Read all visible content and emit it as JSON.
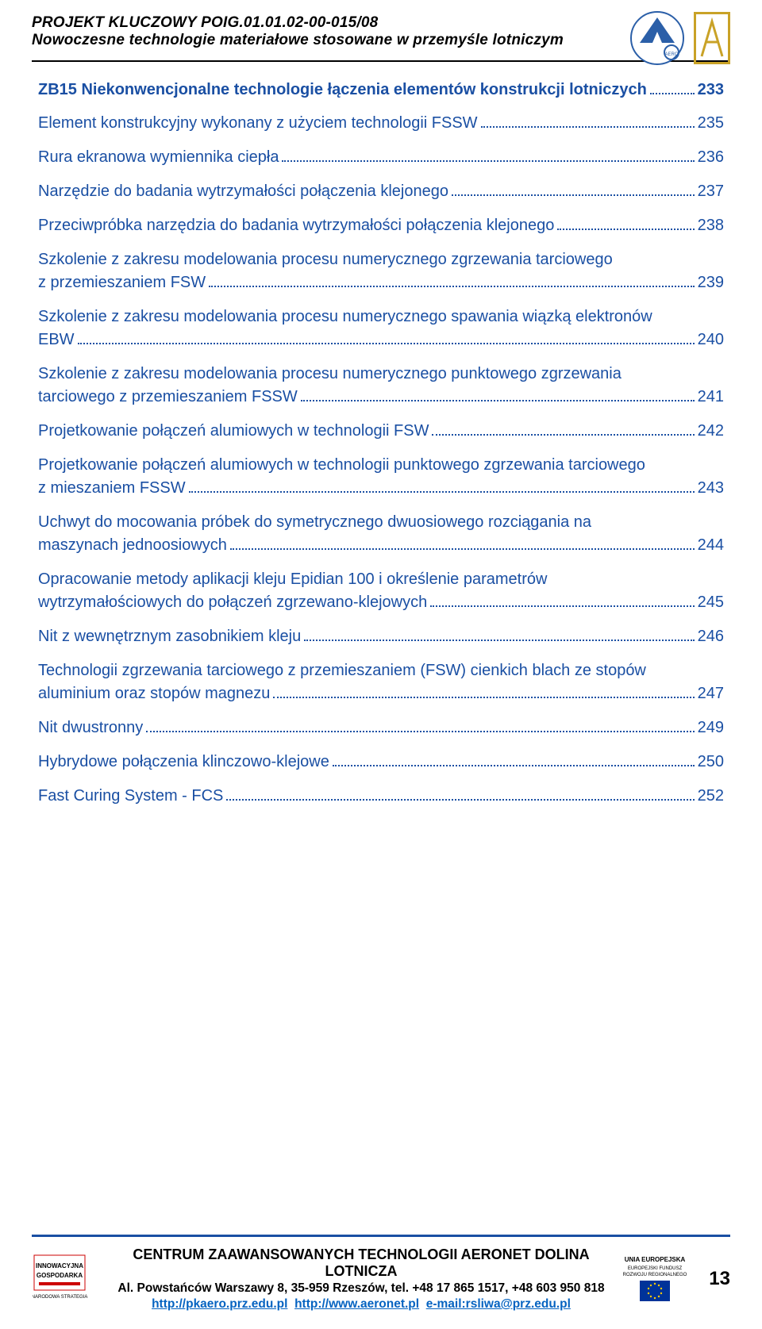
{
  "header": {
    "line1": "PROJEKT KLUCZOWY POIG.01.01.02-00-015/08",
    "line2": "Nowoczesne technologie materiałowe stosowane w przemyśle lotniczym"
  },
  "colors": {
    "link_blue": "#1a4fa3",
    "rule_black": "#000000",
    "footer_rule_blue": "#1a4fa3",
    "gold": "#c9a227",
    "hyperlink": "#0563c1"
  },
  "section": {
    "title": "ZB15 Niekonwencjonalne technologie łączenia elementów konstrukcji lotniczych",
    "page": "233"
  },
  "toc": [
    {
      "text_a": "Element konstrukcyjny wykonany z użyciem  technologii FSSW",
      "text_b": "",
      "page": "235"
    },
    {
      "text_a": "Rura ekranowa wymiennika ciepła",
      "text_b": "",
      "page": "236"
    },
    {
      "text_a": "Narzędzie do badania wytrzymałości  połączenia klejonego",
      "text_b": "",
      "page": "237"
    },
    {
      "text_a": "Przeciwpróbka narzędzia do badania  wytrzymałości połączenia klejonego",
      "text_b": "",
      "page": "238"
    },
    {
      "text_a": "Szkolenie z zakresu modelowania procesu numerycznego zgrzewania tarciowego",
      "text_b": "z przemieszaniem FSW",
      "page": "239"
    },
    {
      "text_a": "Szkolenie z zakresu modelowania procesu  numerycznego spawania wiązką elektronów",
      "text_b": "EBW",
      "page": "240"
    },
    {
      "text_a": "Szkolenie z zakresu modelowania procesu  numerycznego punktowego zgrzewania",
      "text_b": "tarciowego z przemieszaniem FSSW",
      "page": "241"
    },
    {
      "text_a": "Projetkowanie połączeń alumiowych  w technologii FSW",
      "text_b": "",
      "page": "242"
    },
    {
      "text_a": "Projetkowanie połączeń alumiowych  w technologii punktowego zgrzewania  tarciowego",
      "text_b": "z mieszaniem FSSW",
      "page": "243"
    },
    {
      "text_a": "Uchwyt do mocowania próbek do symetrycznego dwuosiowego rozciągania na",
      "text_b": "maszynach  jednoosiowych",
      "page": "244"
    },
    {
      "text_a": "Opracowanie metody aplikacji kleju Epidian 100  i określenie parametrów",
      "text_b": "wytrzymałościowych  do połączeń zgrzewano-klejowych",
      "page": "245"
    },
    {
      "text_a": "Nit z wewnętrznym zasobnikiem kleju",
      "text_b": "",
      "page": "246"
    },
    {
      "text_a": "Technologii zgrzewania tarciowego  z przemieszaniem (FSW) cienkich blach  ze stopów",
      "text_b": "aluminium oraz stopów magnezu",
      "page": "247"
    },
    {
      "text_a": "Nit dwustronny",
      "text_b": "",
      "page": "249"
    },
    {
      "text_a": "Hybrydowe połączenia klinczowo-klejowe",
      "text_b": "",
      "page": "250"
    },
    {
      "text_a": "Fast Curing System - FCS",
      "text_b": "",
      "page": "252"
    }
  ],
  "footer": {
    "l1": "CENTRUM ZAAWANSOWANYCH TECHNOLOGII AERONET DOLINA LOTNICZA",
    "l2": "Al. Powstańców Warszawy 8, 35-959 Rzeszów, tel. +48 17 865 1517, +48 603 950 818",
    "l3_a": "http://pkaero.prz.edu.pl",
    "l3_b": "http://www.aeronet.pl",
    "l3_c": "e-mail:rsliwa@prz.edu.pl",
    "page": "13"
  }
}
